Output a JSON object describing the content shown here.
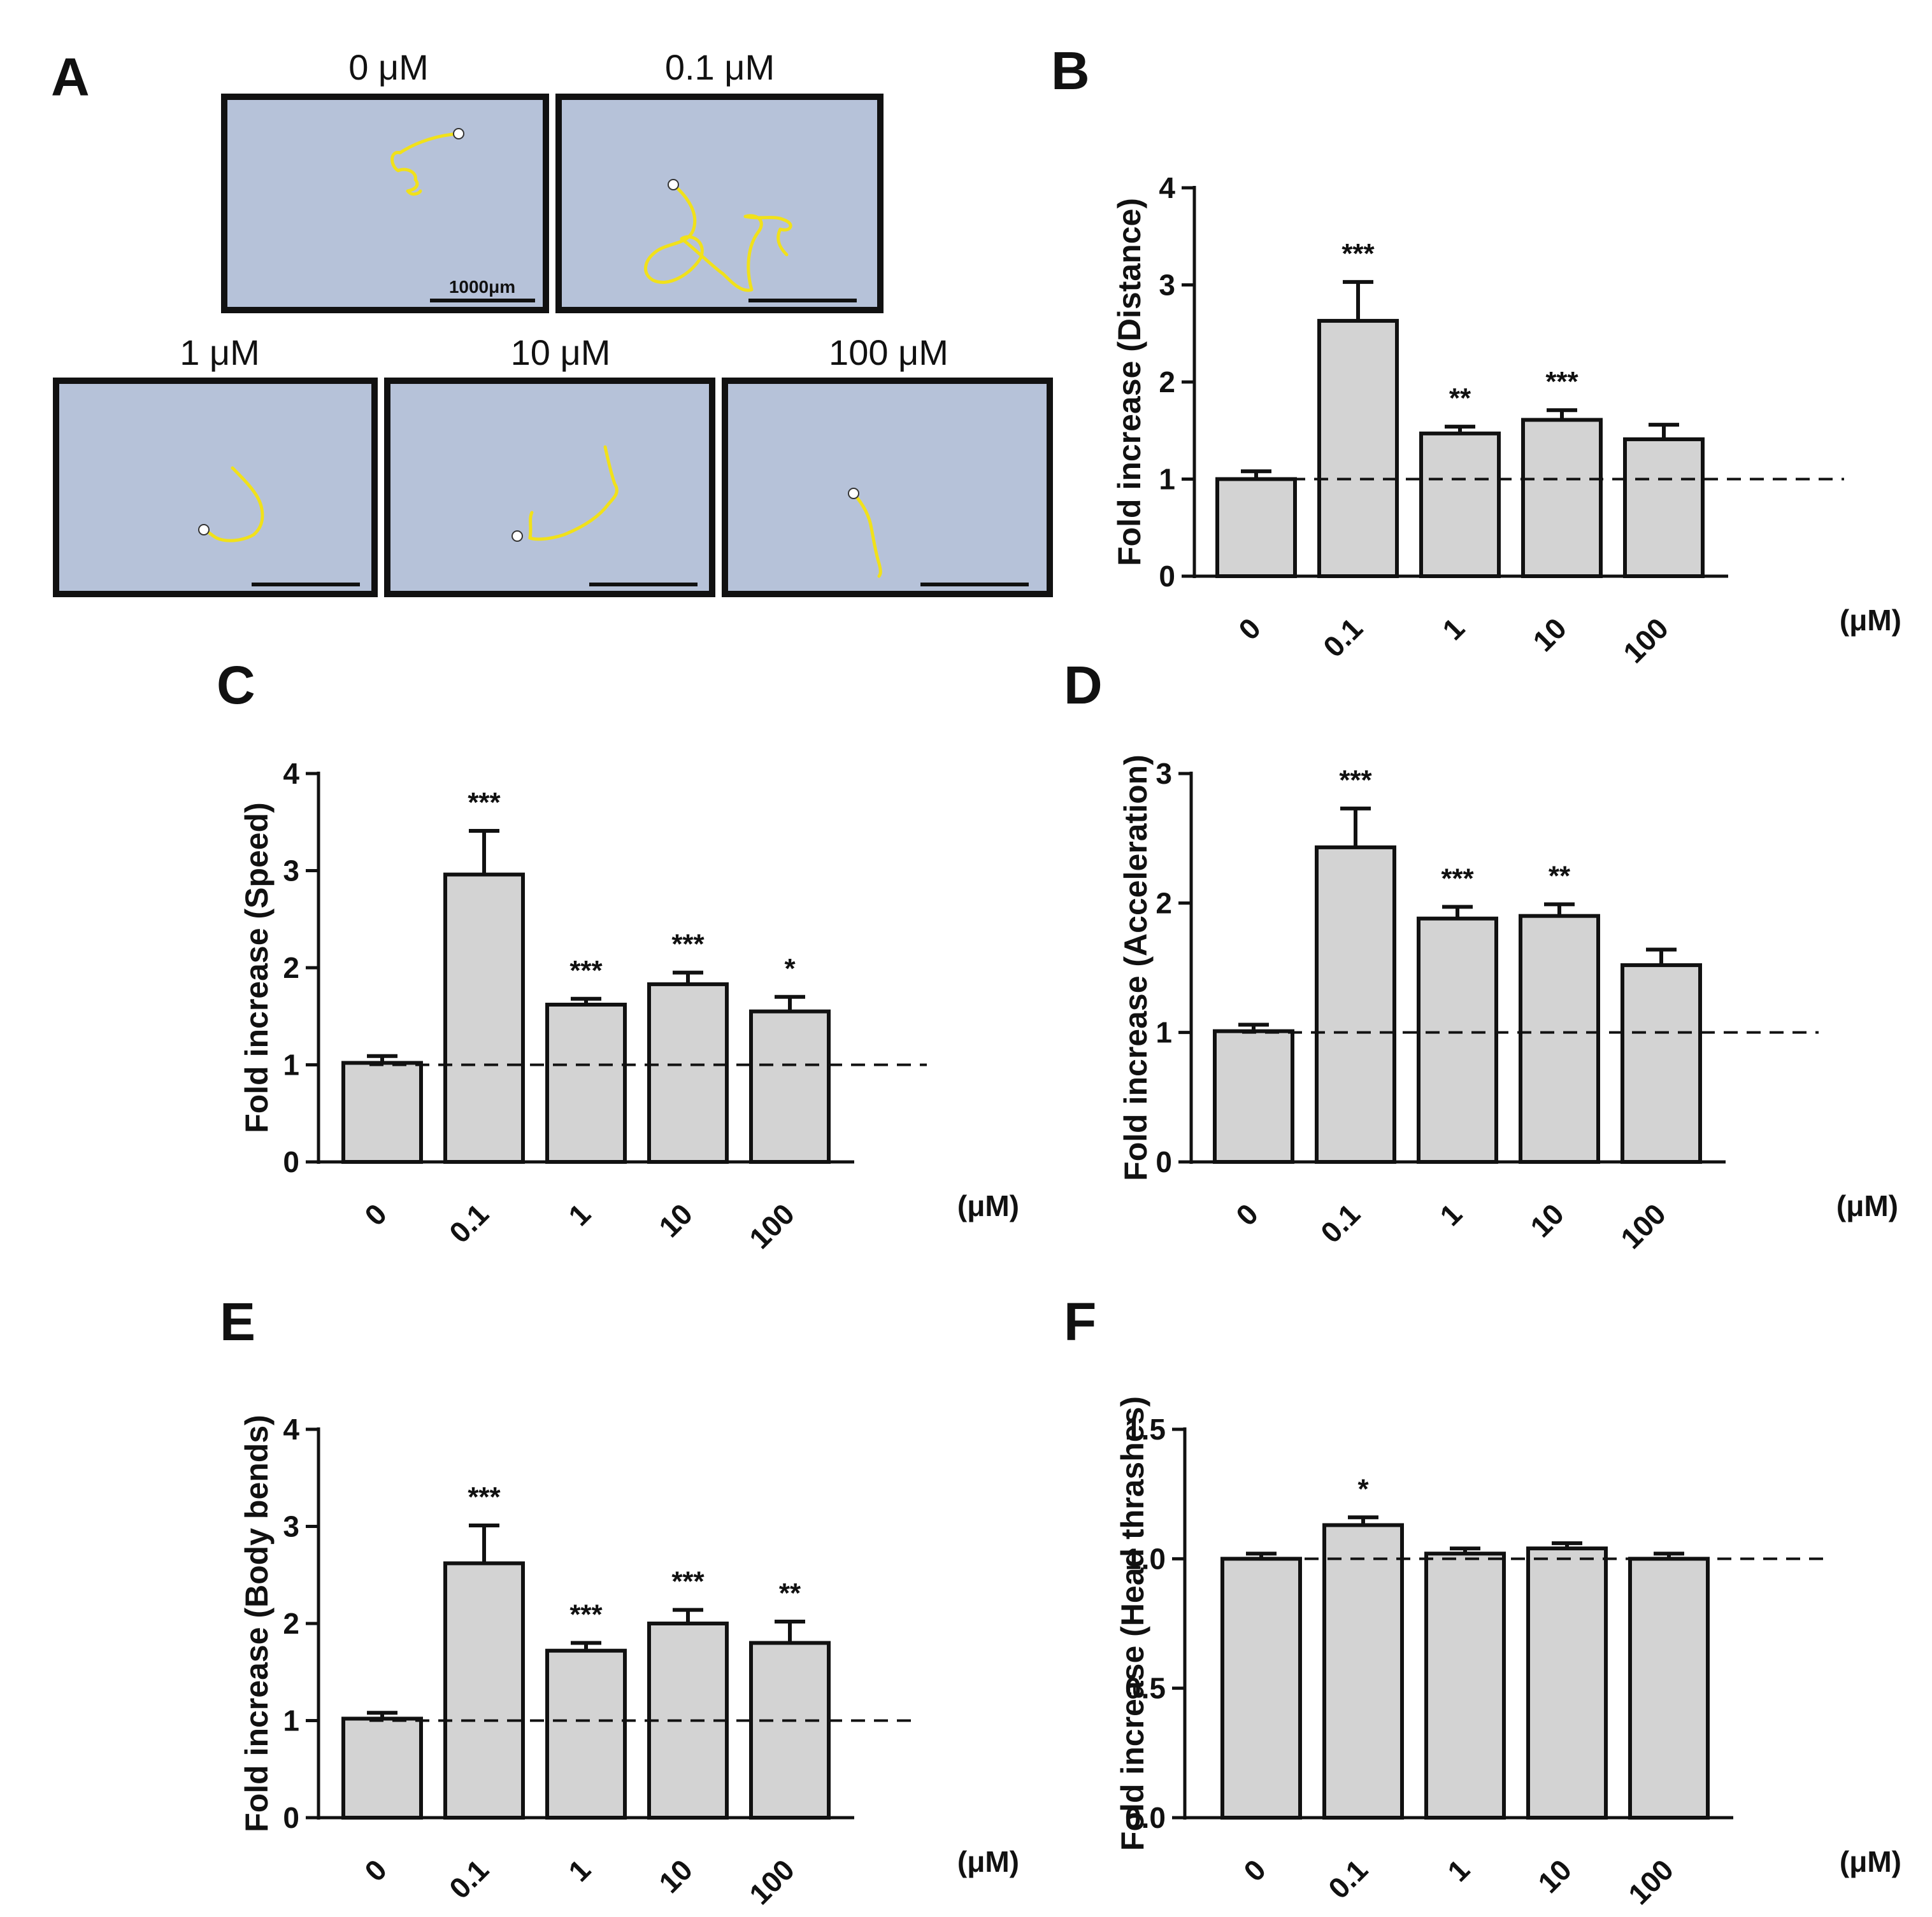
{
  "panel_a": {
    "letter": "A",
    "scale_label": "1000μm",
    "images": [
      {
        "label": "0 μM"
      },
      {
        "label": "0.1 μM"
      },
      {
        "label": "1 μM"
      },
      {
        "label": "10 μM"
      },
      {
        "label": "100 μM"
      }
    ]
  },
  "chart_data": [
    {
      "panel": "B",
      "type": "bar",
      "categories": [
        "0",
        "0.1",
        "1",
        "10",
        "100"
      ],
      "unit": "(μM)",
      "ylabel": "Fold increase (Distance)",
      "ylim": [
        0,
        4
      ],
      "yticks": [
        "0",
        "1",
        "2",
        "3",
        "4"
      ],
      "values": [
        1.0,
        2.63,
        1.47,
        1.61,
        1.41
      ],
      "errors": [
        0.08,
        0.4,
        0.07,
        0.1,
        0.15
      ],
      "significance": [
        "",
        "***",
        "**",
        "***",
        ""
      ],
      "reference_line": 1.0
    },
    {
      "panel": "C",
      "type": "bar",
      "categories": [
        "0",
        "0.1",
        "1",
        "10",
        "100"
      ],
      "unit": "(μM)",
      "ylabel": "Fold increase (Speed)",
      "ylim": [
        0,
        4
      ],
      "yticks": [
        "0",
        "1",
        "2",
        "3",
        "4"
      ],
      "values": [
        1.02,
        2.96,
        1.62,
        1.83,
        1.55
      ],
      "errors": [
        0.07,
        0.45,
        0.06,
        0.12,
        0.15
      ],
      "significance": [
        "",
        "***",
        "***",
        "***",
        "*"
      ],
      "reference_line": 1.0
    },
    {
      "panel": "D",
      "type": "bar",
      "categories": [
        "0",
        "0.1",
        "1",
        "10",
        "100"
      ],
      "unit": "(μM)",
      "ylabel": "Fold increase (Acceleration)",
      "ylim": [
        0,
        3
      ],
      "yticks": [
        "0",
        "1",
        "2",
        "3"
      ],
      "values": [
        1.01,
        2.43,
        1.88,
        1.9,
        1.52
      ],
      "errors": [
        0.05,
        0.3,
        0.09,
        0.09,
        0.12
      ],
      "significance": [
        "",
        "***",
        "***",
        "**",
        ""
      ],
      "reference_line": 1.0
    },
    {
      "panel": "E",
      "type": "bar",
      "categories": [
        "0",
        "0.1",
        "1",
        "10",
        "100"
      ],
      "unit": "(μM)",
      "ylabel": "Fold increase (Body bends)",
      "ylim": [
        0,
        4
      ],
      "yticks": [
        "0",
        "1",
        "2",
        "3",
        "4"
      ],
      "values": [
        1.02,
        2.62,
        1.72,
        2.0,
        1.8
      ],
      "errors": [
        0.06,
        0.39,
        0.08,
        0.14,
        0.22
      ],
      "significance": [
        "",
        "***",
        "***",
        "***",
        "**"
      ],
      "reference_line": 1.0
    },
    {
      "panel": "F",
      "type": "bar",
      "categories": [
        "0",
        "0.1",
        "1",
        "10",
        "100"
      ],
      "unit": "(μM)",
      "ylabel": "Fold increase (Head thrashes)",
      "ylim": [
        0,
        1.5
      ],
      "yticks": [
        "0.0",
        "0.5",
        "1.0",
        "1.5"
      ],
      "values": [
        1.0,
        1.13,
        1.02,
        1.04,
        1.0
      ],
      "errors": [
        0.02,
        0.03,
        0.02,
        0.02,
        0.02
      ],
      "significance": [
        "",
        "*",
        "",
        "",
        ""
      ],
      "reference_line": 1.0
    }
  ]
}
